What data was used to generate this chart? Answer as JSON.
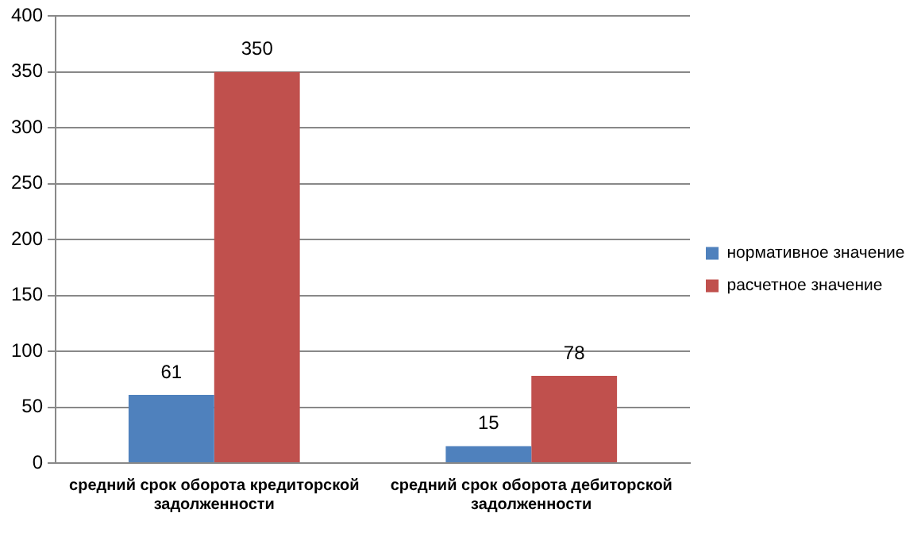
{
  "chart_data": {
    "type": "bar",
    "categories": [
      "средний срок оборота кредиторской задолженности",
      "средний срок оборота дебиторской задолженности"
    ],
    "series": [
      {
        "name": "нормативное значение",
        "color": "#4f81bd",
        "values": [
          61,
          15
        ]
      },
      {
        "name": "расчетное значение",
        "color": "#c0504d",
        "values": [
          350,
          78
        ]
      }
    ],
    "ylim": [
      0,
      400
    ],
    "yticks": [
      0,
      50,
      100,
      150,
      200,
      250,
      300,
      350,
      400
    ],
    "grid": "y",
    "legend": "right",
    "data_labels": true
  }
}
